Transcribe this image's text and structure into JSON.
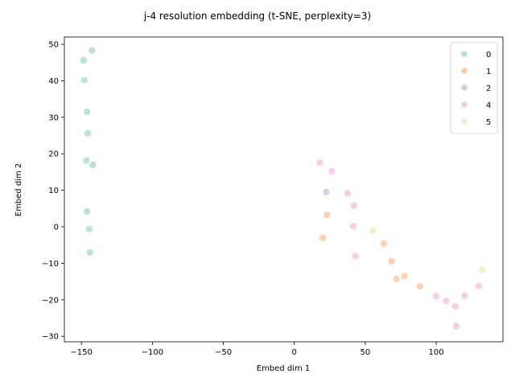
{
  "chart_data": {
    "type": "scatter",
    "title": "j-4 resolution embedding (t-SNE, perplexity=3)",
    "xlabel": "Embed dim 1",
    "ylabel": "Embed dim 2",
    "xlim": [
      -162,
      147
    ],
    "ylim": [
      -31.5,
      52
    ],
    "xticks": [
      -150,
      -100,
      -50,
      0,
      50,
      100
    ],
    "yticks": [
      -30,
      -20,
      -10,
      0,
      10,
      20,
      30,
      40,
      50
    ],
    "grid": false,
    "legend_position": "top-right",
    "series": [
      {
        "name": "0",
        "color": "#b3e2cd",
        "points": [
          [
            -142.5,
            48.3
          ],
          [
            -148.5,
            45.6
          ],
          [
            -148,
            40.2
          ],
          [
            -146,
            31.5
          ],
          [
            -145.5,
            25.6
          ],
          [
            -146.5,
            18.2
          ],
          [
            -142,
            17.0
          ],
          [
            -146,
            4.2
          ],
          [
            -144.5,
            -0.6
          ],
          [
            -144,
            -7.0
          ]
        ]
      },
      {
        "name": "1",
        "color": "#fdcdac",
        "points": [
          [
            23,
            3.3
          ],
          [
            20,
            -3.0
          ],
          [
            63,
            -4.6
          ],
          [
            68.5,
            -9.4
          ],
          [
            77.5,
            -13.5
          ],
          [
            72,
            -14.3
          ],
          [
            88.5,
            -16.3
          ]
        ]
      },
      {
        "name": "2",
        "color": "#cbd5e8",
        "points": [
          [
            22.5,
            9.5
          ]
        ]
      },
      {
        "name": "4",
        "color": "#f4cae4",
        "points": [
          [
            18,
            17.6
          ],
          [
            26.5,
            15.2
          ],
          [
            37.5,
            9.2
          ],
          [
            42,
            5.8
          ],
          [
            41.5,
            0.2
          ],
          [
            43,
            -8.0
          ],
          [
            100,
            -19.0
          ],
          [
            107,
            -20.3
          ],
          [
            113.5,
            -21.8
          ],
          [
            120,
            -18.9
          ],
          [
            130,
            -16.2
          ],
          [
            114,
            -27.2
          ]
        ]
      },
      {
        "name": "5",
        "color": "#e6f5c9",
        "points": [
          [
            55.5,
            -1.0
          ],
          [
            132.5,
            -11.8
          ]
        ]
      }
    ]
  }
}
